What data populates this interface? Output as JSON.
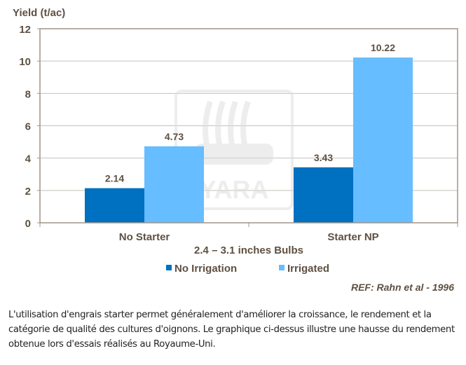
{
  "chart_data": {
    "type": "bar",
    "ylabel": "Yield (t/ac)",
    "xlabel": "2.4 – 3.1 inches Bulbs",
    "categories": [
      "No Starter",
      "Starter NP"
    ],
    "series": [
      {
        "name": "No Irrigation",
        "values": [
          2.14,
          3.43
        ],
        "labels": [
          "2.14",
          "3.43"
        ],
        "color": "#0070c0"
      },
      {
        "name": "Irrigated",
        "values": [
          4.73,
          10.22
        ],
        "labels": [
          "4.73",
          "10.22"
        ],
        "color": "#66bdff"
      }
    ],
    "ylim": [
      0,
      12
    ],
    "yticks": [
      "0",
      "2",
      "4",
      "6",
      "8",
      "10",
      "12"
    ],
    "grid": true,
    "legend": "bottom",
    "reference": {
      "prefix": "REF",
      "text": ": Rahn et al -  1996"
    },
    "watermark": "YARA"
  },
  "description": "L'utilisation d'engrais starter permet généralement d'améliorer la croissance, le rendement et la catégorie de qualité des cultures d'oignons. Le graphique ci-dessus illustre une hausse du rendement obtenue lors d'essais réalisés au Royaume-Uni."
}
